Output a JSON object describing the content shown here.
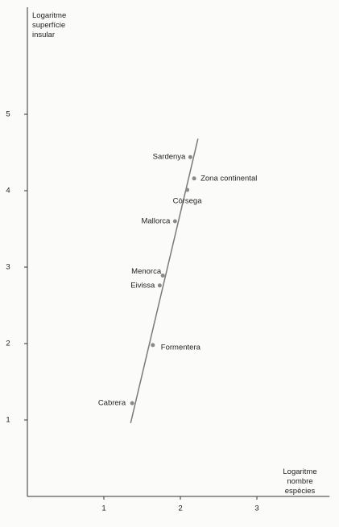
{
  "chart_data": {
    "type": "scatter",
    "x_label": "Logaritme nombre espècies",
    "y_label": "Logaritme superfície insular",
    "labels": [
      "Sardenya",
      "Zona continental",
      "Còrsega",
      "Mallorca",
      "Menorca",
      "Eivissa",
      "Formentera",
      "Cabrera"
    ],
    "x": [
      2.13,
      2.18,
      2.09,
      1.93,
      1.77,
      1.73,
      1.64,
      1.37
    ],
    "y": [
      4.44,
      4.16,
      4.01,
      3.6,
      2.89,
      2.76,
      1.98,
      1.22
    ],
    "color": "#8a8a8a",
    "fit_line": {
      "x": [
        1.35,
        2.23
      ],
      "y": [
        0.96,
        4.68
      ],
      "color": "#7a7a7a"
    },
    "xlim": [
      0,
      3.95
    ],
    "ylim": [
      0,
      6.4
    ],
    "xticks": [
      1,
      2,
      3
    ],
    "yticks": [
      1,
      2,
      3,
      4,
      5
    ],
    "grid": false
  }
}
